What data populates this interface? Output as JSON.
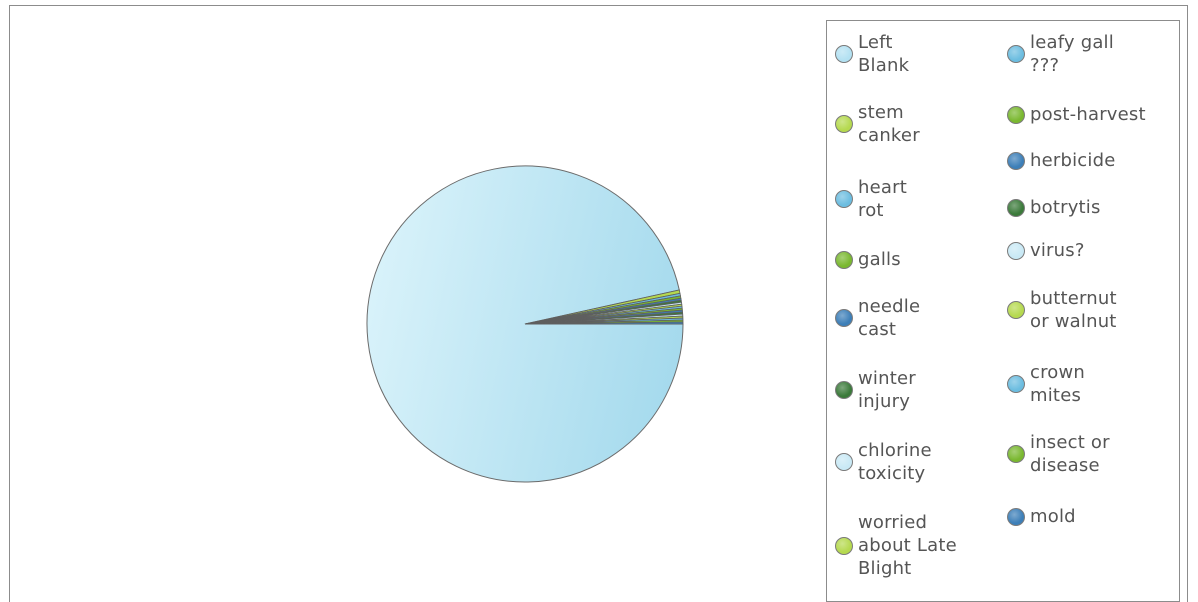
{
  "chart_data": {
    "type": "pie",
    "title": "",
    "legend_position": "right",
    "slices": [
      {
        "label": "Left\nBlank",
        "value": 96.5,
        "color": "#b3e1f2"
      },
      {
        "label": "stem\ncanker",
        "value": 0.35,
        "color": "#b5d94f"
      },
      {
        "label": "heart\nrot",
        "value": 0.25,
        "color": "#6cbde0"
      },
      {
        "label": "galls",
        "value": 0.25,
        "color": "#7ab830"
      },
      {
        "label": "needle\ncast",
        "value": 0.2,
        "color": "#3d7fb8"
      },
      {
        "label": "winter\ninjury",
        "value": 0.2,
        "color": "#3b7a3a"
      },
      {
        "label": "chlorine\ntoxicity",
        "value": 0.2,
        "color": "#c9e9f5"
      },
      {
        "label": "worried\nabout Late\nBlight",
        "value": 0.2,
        "color": "#b5d94f"
      },
      {
        "label": "leafy gall\n???",
        "value": 0.2,
        "color": "#6cbde0"
      },
      {
        "label": "post-harvest",
        "value": 0.2,
        "color": "#7ab830"
      },
      {
        "label": "herbicide",
        "value": 0.2,
        "color": "#3d7fb8"
      },
      {
        "label": "botrytis",
        "value": 0.2,
        "color": "#3b7a3a"
      },
      {
        "label": "virus?",
        "value": 0.2,
        "color": "#c9e9f5"
      },
      {
        "label": "butternut\nor walnut",
        "value": 0.2,
        "color": "#b5d94f"
      },
      {
        "label": "crown\nmites",
        "value": 0.2,
        "color": "#6cbde0"
      },
      {
        "label": "insect or\ndisease",
        "value": 0.2,
        "color": "#7ab830"
      },
      {
        "label": "mold",
        "value": 0.2,
        "color": "#3d7fb8"
      }
    ]
  }
}
